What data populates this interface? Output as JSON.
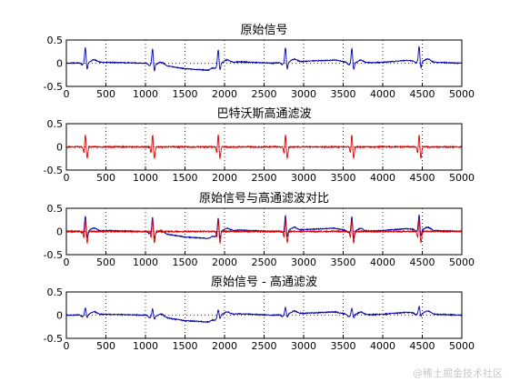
{
  "watermark": "@稀土掘金技术社区",
  "colors": {
    "original": "#0000aa",
    "filtered": "#dd0000",
    "axis": "#000000"
  },
  "chart_data": [
    {
      "type": "line",
      "title": "原始信号",
      "xlim": [
        0,
        5000
      ],
      "ylim": [
        -0.5,
        0.5
      ],
      "xticks": [
        0,
        500,
        1000,
        1500,
        2000,
        2500,
        3000,
        3500,
        4000,
        4500,
        5000
      ],
      "yticks": [
        -0.5,
        0,
        0.5
      ],
      "grid": true,
      "series": [
        {
          "color": "#0000aa",
          "kind": "original",
          "beats": [
            240,
            1090,
            1920,
            2770,
            3610,
            4460
          ],
          "amplitude": 0.33,
          "baseline": [
            [
              0,
              0.0
            ],
            [
              500,
              0.02
            ],
            [
              1000,
              0.0
            ],
            [
              1200,
              -0.04
            ],
            [
              1500,
              -0.12
            ],
            [
              1800,
              -0.15
            ],
            [
              1950,
              0.0
            ],
            [
              2200,
              0.03
            ],
            [
              2600,
              0.0
            ],
            [
              3000,
              0.04
            ],
            [
              3400,
              0.07
            ],
            [
              3600,
              0.0
            ],
            [
              4000,
              0.02
            ],
            [
              4300,
              0.06
            ],
            [
              4650,
              0.02
            ],
            [
              5000,
              0.0
            ]
          ]
        }
      ]
    },
    {
      "type": "line",
      "title": "巴特沃斯高通滤波",
      "xlim": [
        0,
        5000
      ],
      "ylim": [
        -0.5,
        0.5
      ],
      "xticks": [
        0,
        500,
        1000,
        1500,
        2000,
        2500,
        3000,
        3500,
        4000,
        4500,
        5000
      ],
      "yticks": [
        -0.5,
        0,
        0.5
      ],
      "grid": true,
      "series": [
        {
          "color": "#dd0000",
          "kind": "filtered",
          "beats": [
            240,
            1090,
            1920,
            2770,
            3610,
            4460
          ],
          "amplitude": 0.28
        }
      ]
    },
    {
      "type": "line",
      "title": "原始信号与高通滤波对比",
      "xlim": [
        0,
        5000
      ],
      "ylim": [
        -0.5,
        0.5
      ],
      "xticks": [
        0,
        500,
        1000,
        1500,
        2000,
        2500,
        3000,
        3500,
        4000,
        4500,
        5000
      ],
      "yticks": [
        -0.5,
        0,
        0.5
      ],
      "grid": true,
      "series": [
        {
          "color": "#0000aa",
          "kind": "original",
          "beats": [
            240,
            1090,
            1920,
            2770,
            3610,
            4460
          ],
          "amplitude": 0.33,
          "baseline": [
            [
              0,
              0.0
            ],
            [
              500,
              0.02
            ],
            [
              1000,
              0.0
            ],
            [
              1200,
              -0.04
            ],
            [
              1500,
              -0.12
            ],
            [
              1800,
              -0.15
            ],
            [
              1950,
              0.0
            ],
            [
              2200,
              0.03
            ],
            [
              2600,
              0.0
            ],
            [
              3000,
              0.04
            ],
            [
              3400,
              0.07
            ],
            [
              3600,
              0.0
            ],
            [
              4000,
              0.02
            ],
            [
              4300,
              0.06
            ],
            [
              4650,
              0.02
            ],
            [
              5000,
              0.0
            ]
          ]
        },
        {
          "color": "#dd0000",
          "kind": "filtered",
          "beats": [
            240,
            1090,
            1920,
            2770,
            3610,
            4460
          ],
          "amplitude": 0.28
        }
      ]
    },
    {
      "type": "line",
      "title": "原始信号 - 高通滤波",
      "xlim": [
        0,
        5000
      ],
      "ylim": [
        -0.5,
        0.5
      ],
      "xticks": [
        0,
        500,
        1000,
        1500,
        2000,
        2500,
        3000,
        3500,
        4000,
        4500,
        5000
      ],
      "yticks": [
        -0.5,
        0,
        0.5
      ],
      "grid": true,
      "series": [
        {
          "color": "#0000aa",
          "kind": "difference",
          "beats": [
            240,
            1090,
            1920,
            2770,
            3610,
            4460
          ],
          "amplitude": 0.15,
          "baseline": [
            [
              0,
              0.0
            ],
            [
              500,
              0.02
            ],
            [
              1000,
              0.0
            ],
            [
              1200,
              -0.04
            ],
            [
              1500,
              -0.12
            ],
            [
              1800,
              -0.15
            ],
            [
              1950,
              0.0
            ],
            [
              2200,
              0.03
            ],
            [
              2600,
              0.0
            ],
            [
              3000,
              0.04
            ],
            [
              3400,
              0.07
            ],
            [
              3600,
              0.0
            ],
            [
              4000,
              0.02
            ],
            [
              4300,
              0.06
            ],
            [
              4650,
              0.02
            ],
            [
              5000,
              0.0
            ]
          ]
        }
      ]
    }
  ]
}
